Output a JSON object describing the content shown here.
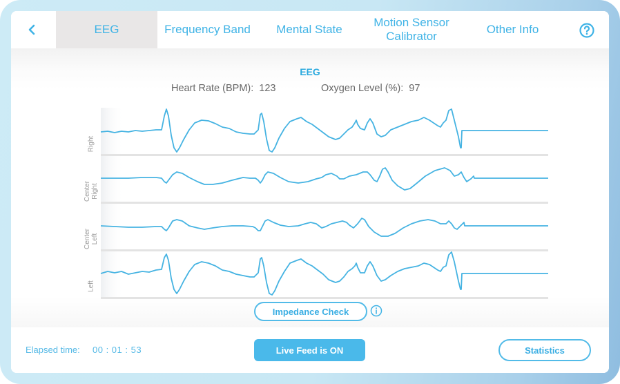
{
  "colors": {
    "accent": "#3fb3e6",
    "title": "#2aa9de",
    "trace": "#45b3e2",
    "active_tab_bg": "#e9e7e7",
    "baseline": "#e3e3e3",
    "live_button": "#4ab9ea"
  },
  "nav": {
    "back_icon": "chevron-left",
    "tabs": [
      {
        "label": "EEG",
        "active": true
      },
      {
        "label": "Frequency Band",
        "active": false
      },
      {
        "label": "Mental State",
        "active": false
      },
      {
        "label": "Motion Sensor Calibrator",
        "active": false
      },
      {
        "label": "Other Info",
        "active": false
      }
    ],
    "help_icon": "question-circle"
  },
  "main": {
    "title": "EEG",
    "heart_rate_label": "Heart Rate (BPM):",
    "heart_rate_value": "123",
    "oxygen_label": "Oxygen Level (%):",
    "oxygen_value": "97",
    "impedance_button": "Impedance Check",
    "info_icon": "info-circle"
  },
  "chart_data": {
    "type": "line",
    "title": "EEG",
    "xlabel": "",
    "ylabel": "",
    "grid": false,
    "series": [
      {
        "name": "Right",
        "points": [
          [
            0,
            35
          ],
          [
            10,
            34
          ],
          [
            20,
            36
          ],
          [
            30,
            34
          ],
          [
            40,
            35
          ],
          [
            50,
            33
          ],
          [
            60,
            34
          ],
          [
            70,
            33
          ],
          [
            80,
            32
          ],
          [
            88,
            32
          ],
          [
            92,
            12
          ],
          [
            95,
            2
          ],
          [
            98,
            12
          ],
          [
            102,
            40
          ],
          [
            106,
            58
          ],
          [
            110,
            64
          ],
          [
            114,
            58
          ],
          [
            120,
            46
          ],
          [
            128,
            32
          ],
          [
            136,
            22
          ],
          [
            146,
            18
          ],
          [
            156,
            19
          ],
          [
            166,
            23
          ],
          [
            176,
            28
          ],
          [
            186,
            30
          ],
          [
            196,
            35
          ],
          [
            206,
            37
          ],
          [
            216,
            38
          ],
          [
            222,
            38
          ],
          [
            226,
            34
          ],
          [
            228,
            32
          ],
          [
            231,
            10
          ],
          [
            233,
            8
          ],
          [
            236,
            20
          ],
          [
            240,
            45
          ],
          [
            244,
            62
          ],
          [
            248,
            64
          ],
          [
            252,
            58
          ],
          [
            258,
            44
          ],
          [
            266,
            30
          ],
          [
            274,
            20
          ],
          [
            284,
            16
          ],
          [
            290,
            14
          ],
          [
            298,
            20
          ],
          [
            306,
            24
          ],
          [
            314,
            30
          ],
          [
            322,
            36
          ],
          [
            330,
            42
          ],
          [
            340,
            46
          ],
          [
            346,
            44
          ],
          [
            352,
            38
          ],
          [
            358,
            32
          ],
          [
            364,
            28
          ],
          [
            368,
            22
          ],
          [
            370,
            18
          ],
          [
            372,
            24
          ],
          [
            376,
            30
          ],
          [
            382,
            32
          ],
          [
            386,
            22
          ],
          [
            390,
            16
          ],
          [
            394,
            22
          ],
          [
            400,
            38
          ],
          [
            406,
            42
          ],
          [
            412,
            40
          ],
          [
            420,
            32
          ],
          [
            430,
            28
          ],
          [
            440,
            24
          ],
          [
            450,
            20
          ],
          [
            460,
            18
          ],
          [
            468,
            14
          ],
          [
            476,
            18
          ],
          [
            482,
            22
          ],
          [
            488,
            26
          ],
          [
            492,
            28
          ],
          [
            496,
            22
          ],
          [
            500,
            18
          ],
          [
            504,
            4
          ],
          [
            508,
            2
          ],
          [
            512,
            18
          ],
          [
            518,
            42
          ],
          [
            521,
            58
          ],
          [
            522,
            58
          ],
          [
            523,
            33
          ],
          [
            540,
            33
          ],
          [
            648,
            33
          ]
        ]
      },
      {
        "name": "Center Right",
        "points": [
          [
            0,
            33
          ],
          [
            20,
            33
          ],
          [
            40,
            33
          ],
          [
            60,
            32
          ],
          [
            80,
            32
          ],
          [
            88,
            33
          ],
          [
            92,
            38
          ],
          [
            95,
            40
          ],
          [
            98,
            36
          ],
          [
            104,
            28
          ],
          [
            110,
            24
          ],
          [
            118,
            26
          ],
          [
            128,
            32
          ],
          [
            140,
            38
          ],
          [
            150,
            42
          ],
          [
            162,
            42
          ],
          [
            176,
            40
          ],
          [
            190,
            36
          ],
          [
            206,
            32
          ],
          [
            216,
            33
          ],
          [
            224,
            33
          ],
          [
            228,
            36
          ],
          [
            231,
            40
          ],
          [
            234,
            36
          ],
          [
            238,
            28
          ],
          [
            242,
            24
          ],
          [
            250,
            26
          ],
          [
            260,
            32
          ],
          [
            272,
            38
          ],
          [
            286,
            40
          ],
          [
            300,
            38
          ],
          [
            312,
            34
          ],
          [
            320,
            32
          ],
          [
            326,
            28
          ],
          [
            334,
            26
          ],
          [
            342,
            30
          ],
          [
            346,
            34
          ],
          [
            352,
            34
          ],
          [
            360,
            30
          ],
          [
            370,
            28
          ],
          [
            380,
            24
          ],
          [
            386,
            24
          ],
          [
            390,
            28
          ],
          [
            396,
            36
          ],
          [
            400,
            38
          ],
          [
            404,
            30
          ],
          [
            408,
            20
          ],
          [
            412,
            18
          ],
          [
            416,
            24
          ],
          [
            422,
            36
          ],
          [
            430,
            44
          ],
          [
            440,
            50
          ],
          [
            448,
            48
          ],
          [
            458,
            40
          ],
          [
            470,
            30
          ],
          [
            484,
            22
          ],
          [
            498,
            18
          ],
          [
            506,
            22
          ],
          [
            512,
            30
          ],
          [
            518,
            28
          ],
          [
            522,
            24
          ],
          [
            526,
            32
          ],
          [
            530,
            38
          ],
          [
            536,
            34
          ],
          [
            540,
            30
          ],
          [
            541,
            33
          ],
          [
            648,
            33
          ]
        ]
      },
      {
        "name": "Center Left",
        "points": [
          [
            0,
            33
          ],
          [
            20,
            34
          ],
          [
            40,
            35
          ],
          [
            60,
            35
          ],
          [
            80,
            34
          ],
          [
            88,
            34
          ],
          [
            92,
            38
          ],
          [
            95,
            40
          ],
          [
            98,
            36
          ],
          [
            104,
            26
          ],
          [
            110,
            24
          ],
          [
            118,
            26
          ],
          [
            128,
            33
          ],
          [
            140,
            36
          ],
          [
            150,
            38
          ],
          [
            162,
            36
          ],
          [
            176,
            34
          ],
          [
            190,
            33
          ],
          [
            206,
            33
          ],
          [
            220,
            34
          ],
          [
            224,
            36
          ],
          [
            228,
            40
          ],
          [
            231,
            40
          ],
          [
            234,
            34
          ],
          [
            238,
            26
          ],
          [
            242,
            24
          ],
          [
            250,
            28
          ],
          [
            260,
            32
          ],
          [
            272,
            34
          ],
          [
            286,
            33
          ],
          [
            296,
            30
          ],
          [
            304,
            28
          ],
          [
            312,
            30
          ],
          [
            320,
            36
          ],
          [
            326,
            34
          ],
          [
            334,
            30
          ],
          [
            342,
            28
          ],
          [
            350,
            26
          ],
          [
            356,
            28
          ],
          [
            360,
            32
          ],
          [
            366,
            36
          ],
          [
            372,
            30
          ],
          [
            378,
            22
          ],
          [
            382,
            24
          ],
          [
            388,
            34
          ],
          [
            396,
            42
          ],
          [
            406,
            48
          ],
          [
            416,
            48
          ],
          [
            426,
            44
          ],
          [
            438,
            36
          ],
          [
            450,
            30
          ],
          [
            462,
            26
          ],
          [
            474,
            24
          ],
          [
            484,
            26
          ],
          [
            492,
            30
          ],
          [
            500,
            30
          ],
          [
            504,
            26
          ],
          [
            508,
            30
          ],
          [
            512,
            36
          ],
          [
            516,
            38
          ],
          [
            520,
            34
          ],
          [
            524,
            30
          ],
          [
            526,
            28
          ],
          [
            527,
            33
          ],
          [
            648,
            33
          ]
        ]
      },
      {
        "name": "Left",
        "points": [
          [
            0,
            33
          ],
          [
            10,
            30
          ],
          [
            20,
            32
          ],
          [
            30,
            30
          ],
          [
            40,
            34
          ],
          [
            50,
            32
          ],
          [
            60,
            30
          ],
          [
            70,
            31
          ],
          [
            80,
            28
          ],
          [
            88,
            27
          ],
          [
            92,
            10
          ],
          [
            95,
            5
          ],
          [
            98,
            14
          ],
          [
            102,
            40
          ],
          [
            106,
            56
          ],
          [
            110,
            62
          ],
          [
            114,
            56
          ],
          [
            120,
            44
          ],
          [
            128,
            30
          ],
          [
            136,
            20
          ],
          [
            146,
            16
          ],
          [
            156,
            18
          ],
          [
            166,
            22
          ],
          [
            176,
            28
          ],
          [
            186,
            30
          ],
          [
            196,
            34
          ],
          [
            206,
            36
          ],
          [
            216,
            38
          ],
          [
            222,
            38
          ],
          [
            226,
            34
          ],
          [
            228,
            32
          ],
          [
            231,
            12
          ],
          [
            233,
            10
          ],
          [
            236,
            22
          ],
          [
            240,
            46
          ],
          [
            244,
            62
          ],
          [
            248,
            64
          ],
          [
            252,
            58
          ],
          [
            258,
            44
          ],
          [
            266,
            30
          ],
          [
            274,
            18
          ],
          [
            284,
            14
          ],
          [
            290,
            12
          ],
          [
            298,
            18
          ],
          [
            306,
            22
          ],
          [
            314,
            28
          ],
          [
            322,
            34
          ],
          [
            330,
            42
          ],
          [
            340,
            46
          ],
          [
            346,
            44
          ],
          [
            352,
            38
          ],
          [
            358,
            30
          ],
          [
            364,
            26
          ],
          [
            368,
            22
          ],
          [
            370,
            18
          ],
          [
            372,
            24
          ],
          [
            376,
            32
          ],
          [
            382,
            32
          ],
          [
            386,
            22
          ],
          [
            390,
            16
          ],
          [
            394,
            22
          ],
          [
            400,
            36
          ],
          [
            406,
            44
          ],
          [
            412,
            42
          ],
          [
            420,
            36
          ],
          [
            430,
            30
          ],
          [
            440,
            26
          ],
          [
            450,
            24
          ],
          [
            460,
            22
          ],
          [
            468,
            18
          ],
          [
            476,
            20
          ],
          [
            482,
            24
          ],
          [
            488,
            28
          ],
          [
            492,
            30
          ],
          [
            496,
            24
          ],
          [
            500,
            22
          ],
          [
            504,
            6
          ],
          [
            508,
            2
          ],
          [
            512,
            16
          ],
          [
            518,
            44
          ],
          [
            521,
            56
          ],
          [
            522,
            56
          ],
          [
            523,
            33
          ],
          [
            648,
            33
          ]
        ]
      }
    ]
  },
  "footer": {
    "elapsed_label": "Elapsed time:",
    "elapsed_value": "00 : 01 : 53",
    "live_feed_button": "Live Feed is ON",
    "statistics_button": "Statistics"
  }
}
